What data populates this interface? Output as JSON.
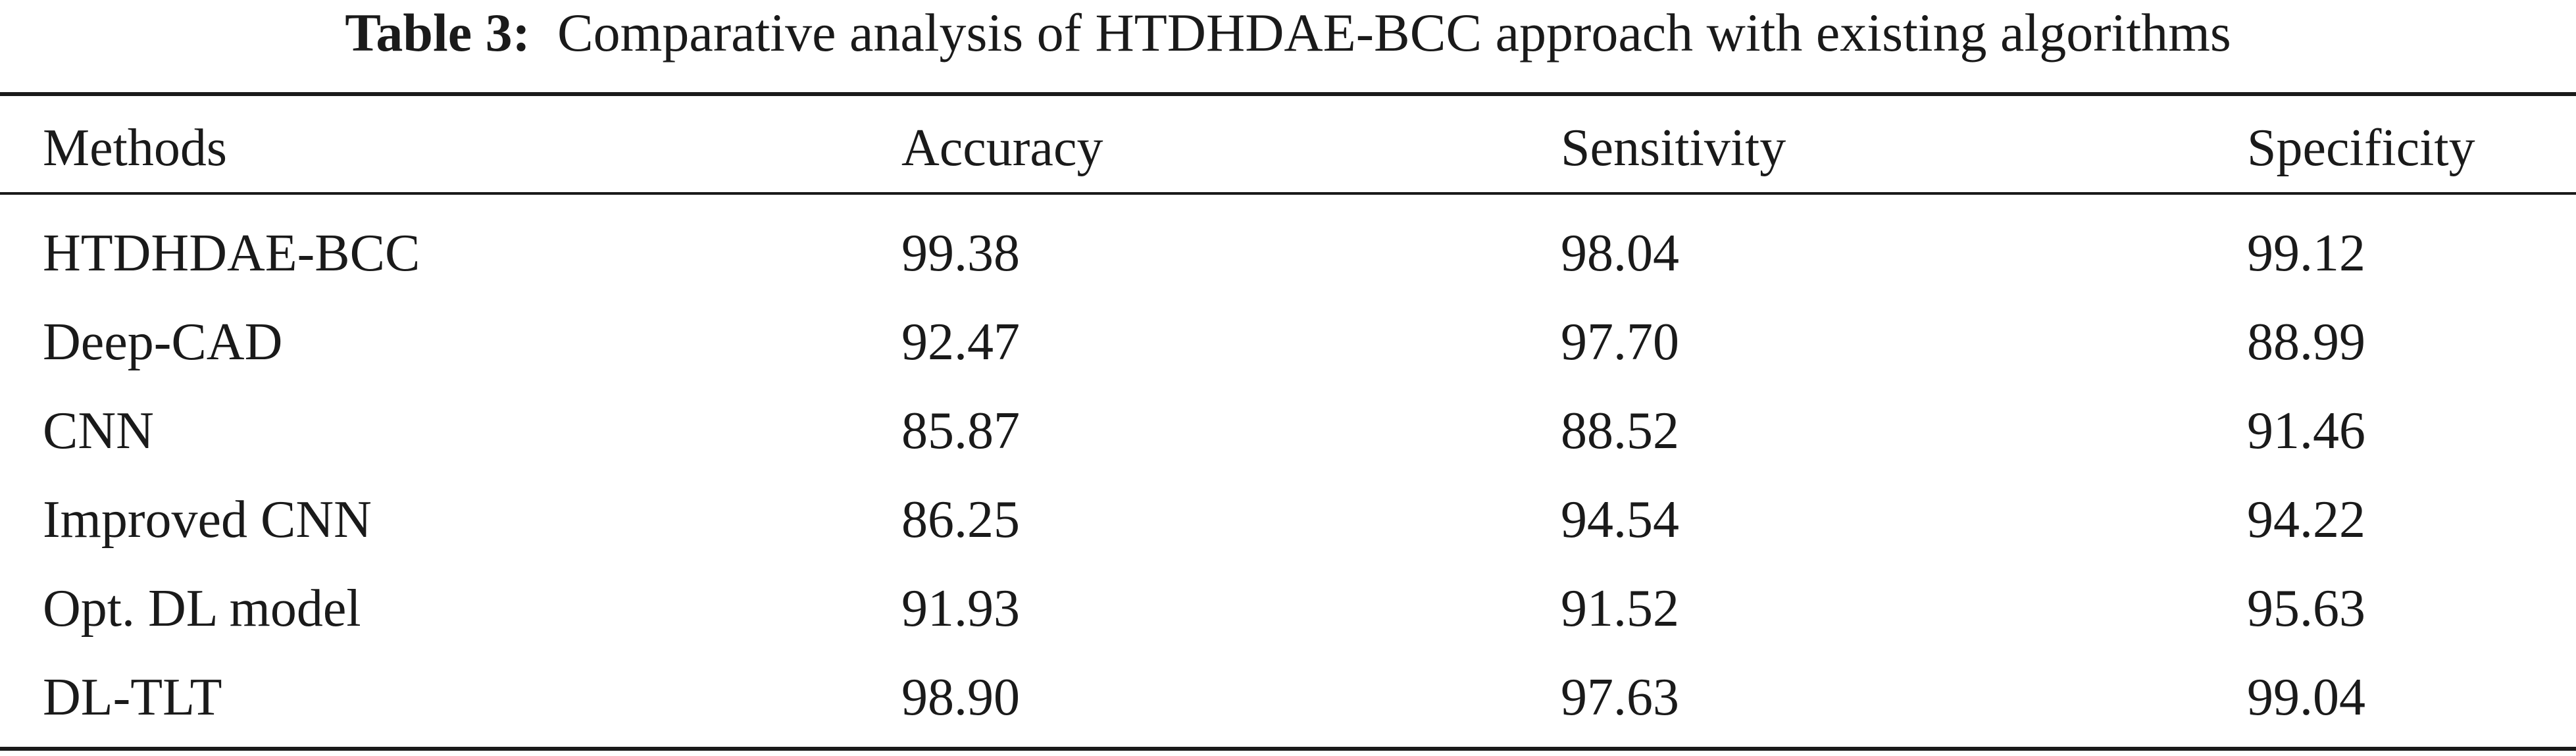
{
  "caption": {
    "label": "Table 3:",
    "text": "Comparative analysis of HTDHDAE-BCC approach with existing algorithms"
  },
  "table": {
    "headers": [
      "Methods",
      "Accuracy",
      "Sensitivity",
      "Specificity"
    ],
    "rows": [
      [
        "HTDHDAE-BCC",
        "99.38",
        "98.04",
        "99.12"
      ],
      [
        "Deep-CAD",
        "92.47",
        "97.70",
        "88.99"
      ],
      [
        "CNN",
        "85.87",
        "88.52",
        "91.46"
      ],
      [
        "Improved CNN",
        "86.25",
        "94.54",
        "94.22"
      ],
      [
        "Opt. DL model",
        "91.93",
        "91.52",
        "95.63"
      ],
      [
        "DL-TLT",
        "98.90",
        "97.63",
        "99.04"
      ]
    ]
  }
}
